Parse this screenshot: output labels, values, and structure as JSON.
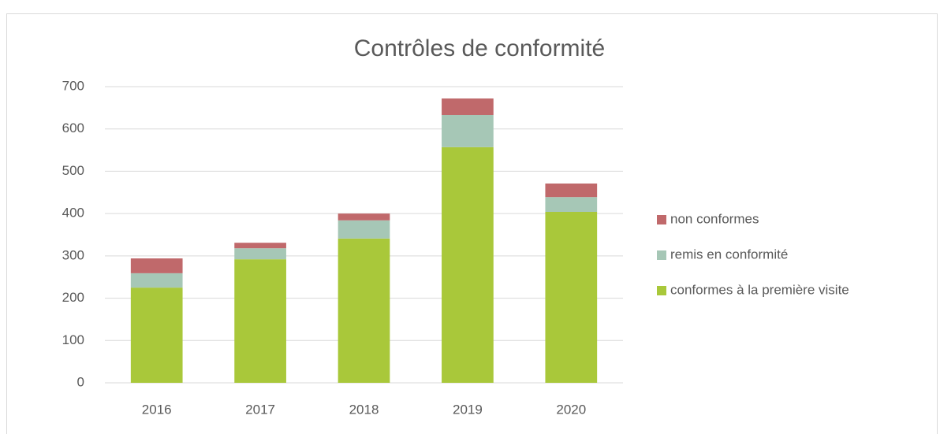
{
  "chart_data": {
    "type": "stacked_bar",
    "title": "Contrôles de conformité",
    "categories": [
      "2016",
      "2017",
      "2018",
      "2019",
      "2020"
    ],
    "series": [
      {
        "name": "conformes à la première visite",
        "color": "#a9c83a",
        "values": [
          225,
          292,
          341,
          557,
          404
        ]
      },
      {
        "name": "remis en conformité",
        "color": "#a6c7b6",
        "values": [
          34,
          26,
          43,
          76,
          35
        ]
      },
      {
        "name": "non conformes",
        "color": "#c0696b",
        "values": [
          35,
          13,
          16,
          39,
          32
        ]
      }
    ],
    "ylim": [
      0,
      700
    ],
    "yticks": [
      0,
      100,
      200,
      300,
      400,
      500,
      600,
      700
    ],
    "grid": true,
    "legend": "right"
  }
}
